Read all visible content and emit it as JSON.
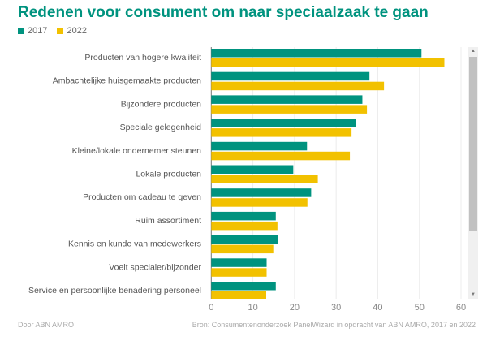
{
  "chart_data": {
    "type": "bar",
    "orientation": "horizontal",
    "title": "Redenen voor consument om naar speciaalzaak te gaan",
    "categories": [
      "Producten van hogere kwaliteit",
      "Ambachtelijke huisgemaakte producten",
      "Bijzondere producten",
      "Speciale gelegenheid",
      "Kleine/lokale ondernemer steunen",
      "Lokale producten",
      "Producten om cadeau te geven",
      "Ruim assortiment",
      "Kennis en kunde van medewerkers",
      "Voelt specialer/bijzonder",
      "Service en persoonlijke benadering personeel"
    ],
    "series": [
      {
        "name": "2017",
        "color": "#00937f",
        "values": [
          50.5,
          38,
          36.3,
          34.8,
          23,
          19.7,
          24,
          15.5,
          16.1,
          13.3,
          15.5
        ]
      },
      {
        "name": "2022",
        "color": "#f2c100",
        "values": [
          56,
          41.5,
          37.4,
          33.7,
          33.3,
          25.6,
          23.1,
          15.9,
          14.9,
          13.3,
          13.2
        ]
      }
    ],
    "xlim": [
      0,
      60
    ],
    "xticks": [
      "0",
      "10",
      "20",
      "30",
      "40",
      "50",
      "60"
    ],
    "grid": true,
    "legend": "top-left"
  },
  "footer": {
    "left": "Door ABN AMRO",
    "right": "Bron: Consumentenonderzoek PanelWizard in opdracht van ABN AMRO, 2017 en 2022"
  },
  "scrollbar": {
    "up_icon": "triangle-up",
    "down_icon": "triangle-down"
  }
}
